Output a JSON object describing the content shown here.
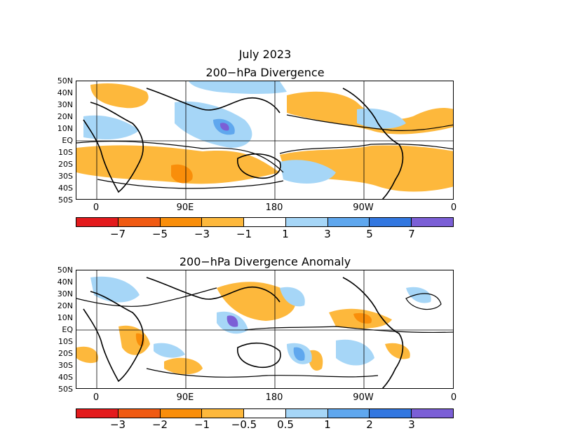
{
  "header": {
    "title_line1": "July 2023",
    "panel1_title": "200−hPa Divergence",
    "panel2_title": "200−hPa Divergence Anomaly"
  },
  "axes": {
    "lat_labels": [
      "50N",
      "40N",
      "30N",
      "20N",
      "10N",
      "EQ",
      "10S",
      "20S",
      "30S",
      "40S",
      "50S"
    ],
    "lon_labels": [
      "0",
      "90E",
      "180",
      "90W",
      "0"
    ]
  },
  "colorbars": {
    "divergence": {
      "colors": [
        "#e31a1c",
        "#f05a12",
        "#f98e0a",
        "#fdb83c",
        "#ffffff",
        "#a6d6f7",
        "#5fa7ee",
        "#3277e0",
        "#7b5fd6"
      ],
      "labels": [
        "−7",
        "−5",
        "−3",
        "−1",
        "1",
        "3",
        "5",
        "7"
      ]
    },
    "anomaly": {
      "colors": [
        "#e31a1c",
        "#f05a12",
        "#f98e0a",
        "#fdb83c",
        "#ffffff",
        "#a6d6f7",
        "#5fa7ee",
        "#3277e0",
        "#7b5fd6"
      ],
      "labels": [
        "−3",
        "−2",
        "−1",
        "−0.5",
        "0.5",
        "1",
        "2",
        "3"
      ]
    }
  },
  "contour_labels": {
    "zero": "0"
  }
}
